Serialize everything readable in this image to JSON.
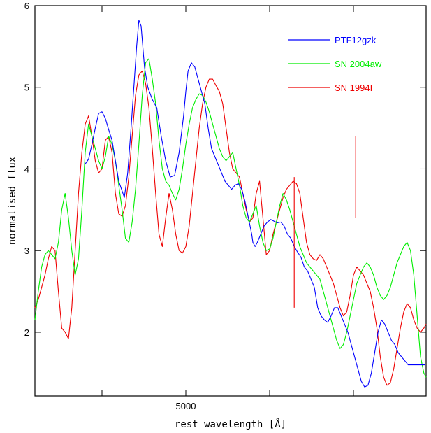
{
  "chart_data": {
    "type": "line",
    "title": "",
    "xlabel": "rest wavelength [Å]",
    "ylabel": "normalised flux",
    "xlim": [
      3650,
      7150
    ],
    "ylim": [
      1.22,
      6.0
    ],
    "x_major_ticks": [
      4250,
      5000,
      5750,
      6500
    ],
    "x_tick_labels": [
      {
        "value": 5000,
        "label": "5000"
      }
    ],
    "y_major_ticks": [
      2,
      3,
      4,
      5,
      6
    ],
    "grid": false,
    "legend_position": "top-right",
    "legend": [
      {
        "label": "PTF12gzk",
        "color": "#0000ff"
      },
      {
        "label": "SN 2004aw",
        "color": "#00ee00"
      },
      {
        "label": "SN 1994I",
        "color": "#ee0000"
      }
    ],
    "series": [
      {
        "name": "PTF12gzk",
        "color": "#0000ff",
        "x": [
          4095,
          4130,
          4160,
          4190,
          4220,
          4250,
          4280,
          4310,
          4340,
          4370,
          4400,
          4425,
          4450,
          4480,
          4510,
          4540,
          4560,
          4580,
          4600,
          4630,
          4660,
          4700,
          4740,
          4780,
          4820,
          4860,
          4900,
          4940,
          4980,
          5000,
          5020,
          5050,
          5080,
          5110,
          5140,
          5170,
          5200,
          5230,
          5260,
          5290,
          5320,
          5350,
          5380,
          5410,
          5440,
          5470,
          5500,
          5530,
          5560,
          5590,
          5600,
          5620,
          5640,
          5670,
          5700,
          5730,
          5760,
          5790,
          5820,
          5850,
          5880,
          5910,
          5940,
          5970,
          6000,
          6030,
          6060,
          6090,
          6120,
          6150,
          6180,
          6210,
          6240,
          6270,
          6300,
          6330,
          6360,
          6390,
          6420,
          6450,
          6480,
          6510,
          6540,
          6570,
          6600,
          6630,
          6660,
          6690,
          6720,
          6750,
          6780,
          6810,
          6840,
          6870,
          6900,
          6930,
          6960,
          6990,
          7020,
          7050,
          7080,
          7110,
          7140
        ],
        "y": [
          4.05,
          4.12,
          4.3,
          4.5,
          4.68,
          4.7,
          4.62,
          4.48,
          4.35,
          4.1,
          3.85,
          3.75,
          3.65,
          3.95,
          4.5,
          5.1,
          5.5,
          5.82,
          5.75,
          5.25,
          5.0,
          4.85,
          4.75,
          4.4,
          4.1,
          3.9,
          3.92,
          4.2,
          4.65,
          4.95,
          5.2,
          5.3,
          5.25,
          5.1,
          4.95,
          4.8,
          4.5,
          4.25,
          4.15,
          4.05,
          3.95,
          3.85,
          3.8,
          3.75,
          3.8,
          3.82,
          3.75,
          3.6,
          3.4,
          3.2,
          3.1,
          3.05,
          3.1,
          3.2,
          3.3,
          3.35,
          3.38,
          3.36,
          3.34,
          3.35,
          3.3,
          3.2,
          3.15,
          3.05,
          2.98,
          2.92,
          2.8,
          2.75,
          2.65,
          2.55,
          2.3,
          2.2,
          2.15,
          2.12,
          2.2,
          2.3,
          2.3,
          2.2,
          2.1,
          2.0,
          1.85,
          1.7,
          1.55,
          1.4,
          1.33,
          1.35,
          1.5,
          1.75,
          2.0,
          2.15,
          2.1,
          2.0,
          1.9,
          1.85,
          1.75,
          1.7,
          1.65,
          1.6,
          1.6,
          1.6,
          1.6,
          1.6,
          1.6
        ]
      },
      {
        "name": "SN 2004aw",
        "color": "#00ee00",
        "x": [
          3650,
          3680,
          3710,
          3740,
          3770,
          3800,
          3830,
          3860,
          3890,
          3920,
          3950,
          3980,
          4010,
          4040,
          4070,
          4100,
          4130,
          4160,
          4190,
          4220,
          4250,
          4280,
          4310,
          4340,
          4370,
          4400,
          4430,
          4460,
          4490,
          4520,
          4550,
          4580,
          4610,
          4640,
          4670,
          4700,
          4730,
          4760,
          4790,
          4820,
          4850,
          4880,
          4910,
          4940,
          4970,
          5000,
          5030,
          5060,
          5090,
          5120,
          5150,
          5180,
          5210,
          5240,
          5270,
          5300,
          5330,
          5360,
          5390,
          5420,
          5450,
          5480,
          5510,
          5540,
          5570,
          5600,
          5630,
          5660,
          5690,
          5720,
          5750,
          5780,
          5810,
          5840,
          5870,
          5900,
          5930,
          5960,
          5990,
          6020,
          6050,
          6080,
          6110,
          6140,
          6170,
          6200,
          6230,
          6260,
          6290,
          6320,
          6350,
          6380,
          6410,
          6440,
          6470,
          6500,
          6530,
          6560,
          6590,
          6620,
          6650,
          6680,
          6710,
          6740,
          6770,
          6800,
          6830,
          6860,
          6890,
          6920,
          6950,
          6980,
          7010,
          7040,
          7070,
          7100,
          7130,
          7150
        ],
        "y": [
          2.15,
          2.5,
          2.8,
          2.95,
          3.0,
          2.95,
          2.9,
          3.1,
          3.5,
          3.7,
          3.4,
          3.0,
          2.7,
          2.9,
          3.5,
          4.2,
          4.55,
          4.4,
          4.25,
          4.1,
          4.0,
          4.15,
          4.4,
          4.3,
          4.1,
          3.8,
          3.5,
          3.15,
          3.1,
          3.35,
          3.75,
          4.3,
          4.9,
          5.3,
          5.35,
          5.1,
          4.8,
          4.35,
          4.0,
          3.85,
          3.8,
          3.7,
          3.62,
          3.75,
          4.0,
          4.3,
          4.55,
          4.75,
          4.85,
          4.92,
          4.9,
          4.82,
          4.7,
          4.55,
          4.4,
          4.25,
          4.15,
          4.1,
          4.15,
          4.2,
          4.0,
          3.8,
          3.55,
          3.4,
          3.35,
          3.45,
          3.55,
          3.3,
          3.1,
          3.0,
          3.02,
          3.15,
          3.35,
          3.55,
          3.7,
          3.62,
          3.5,
          3.35,
          3.2,
          3.05,
          2.95,
          2.85,
          2.8,
          2.75,
          2.7,
          2.65,
          2.5,
          2.35,
          2.2,
          2.05,
          1.9,
          1.8,
          1.85,
          2.0,
          2.2,
          2.4,
          2.6,
          2.7,
          2.8,
          2.85,
          2.8,
          2.7,
          2.55,
          2.45,
          2.4,
          2.45,
          2.55,
          2.7,
          2.85,
          2.95,
          3.05,
          3.1,
          3.0,
          2.7,
          2.2,
          1.7,
          1.5,
          1.45
        ]
      },
      {
        "name": "SN 1994I",
        "color": "#ee0000",
        "x": [
          3650,
          3680,
          3710,
          3740,
          3770,
          3800,
          3830,
          3860,
          3890,
          3920,
          3950,
          3980,
          4010,
          4040,
          4070,
          4100,
          4130,
          4160,
          4190,
          4220,
          4250,
          4280,
          4310,
          4340,
          4370,
          4400,
          4430,
          4460,
          4490,
          4520,
          4550,
          4580,
          4610,
          4640,
          4670,
          4700,
          4730,
          4760,
          4790,
          4820,
          4850,
          4880,
          4910,
          4940,
          4970,
          5000,
          5030,
          5060,
          5090,
          5120,
          5150,
          5180,
          5210,
          5240,
          5270,
          5300,
          5330,
          5360,
          5390,
          5420,
          5450,
          5480,
          5510,
          5540,
          5570,
          5600,
          5630,
          5660,
          5690,
          5720,
          5750,
          5780,
          5810,
          5840,
          5870,
          5900,
          5930,
          5960,
          5990,
          6020,
          6050,
          6080,
          6110,
          6140,
          6170,
          6200,
          6230,
          6260,
          6290,
          6320,
          6350,
          6380,
          6410,
          6440,
          6470,
          6500,
          6530,
          6560,
          6590,
          6620,
          6650,
          6680,
          6710,
          6740,
          6770,
          6800,
          6830,
          6860,
          6890,
          6920,
          6950,
          6980,
          7010,
          7040,
          7070,
          7100,
          7130,
          7150
        ],
        "y": [
          2.3,
          2.4,
          2.55,
          2.7,
          2.9,
          3.05,
          3.0,
          2.5,
          2.05,
          2.0,
          1.92,
          2.3,
          3.0,
          3.7,
          4.2,
          4.55,
          4.65,
          4.4,
          4.1,
          3.95,
          4.0,
          4.35,
          4.4,
          4.2,
          3.7,
          3.45,
          3.42,
          3.55,
          3.9,
          4.4,
          4.9,
          5.15,
          5.2,
          5.05,
          4.75,
          4.25,
          3.7,
          3.2,
          3.05,
          3.4,
          3.7,
          3.5,
          3.2,
          3.0,
          2.97,
          3.05,
          3.3,
          3.7,
          4.1,
          4.5,
          4.8,
          5.0,
          5.1,
          5.1,
          5.02,
          4.95,
          4.8,
          4.5,
          4.2,
          4.0,
          3.95,
          3.9,
          3.7,
          3.5,
          3.35,
          3.4,
          3.7,
          3.85,
          3.4,
          2.95,
          3.0,
          3.2,
          3.35,
          3.5,
          3.65,
          3.75,
          3.8,
          3.85,
          3.82,
          3.7,
          3.4,
          3.1,
          2.95,
          2.9,
          2.88,
          2.95,
          2.9,
          2.8,
          2.7,
          2.6,
          2.45,
          2.3,
          2.2,
          2.25,
          2.45,
          2.7,
          2.8,
          2.75,
          2.7,
          2.6,
          2.5,
          2.3,
          2.05,
          1.7,
          1.45,
          1.35,
          1.38,
          1.55,
          1.8,
          2.05,
          2.25,
          2.35,
          2.3,
          2.15,
          2.05,
          2.0,
          2.05,
          2.1
        ]
      }
    ],
    "annotations": [
      {
        "series": "SN 1994I",
        "x": 6520,
        "ymin": 3.4,
        "ymax": 4.4,
        "type": "spike"
      },
      {
        "series": "SN 1994I",
        "x": 5970,
        "ymin": 2.3,
        "ymax": 3.9,
        "type": "spike"
      }
    ]
  }
}
